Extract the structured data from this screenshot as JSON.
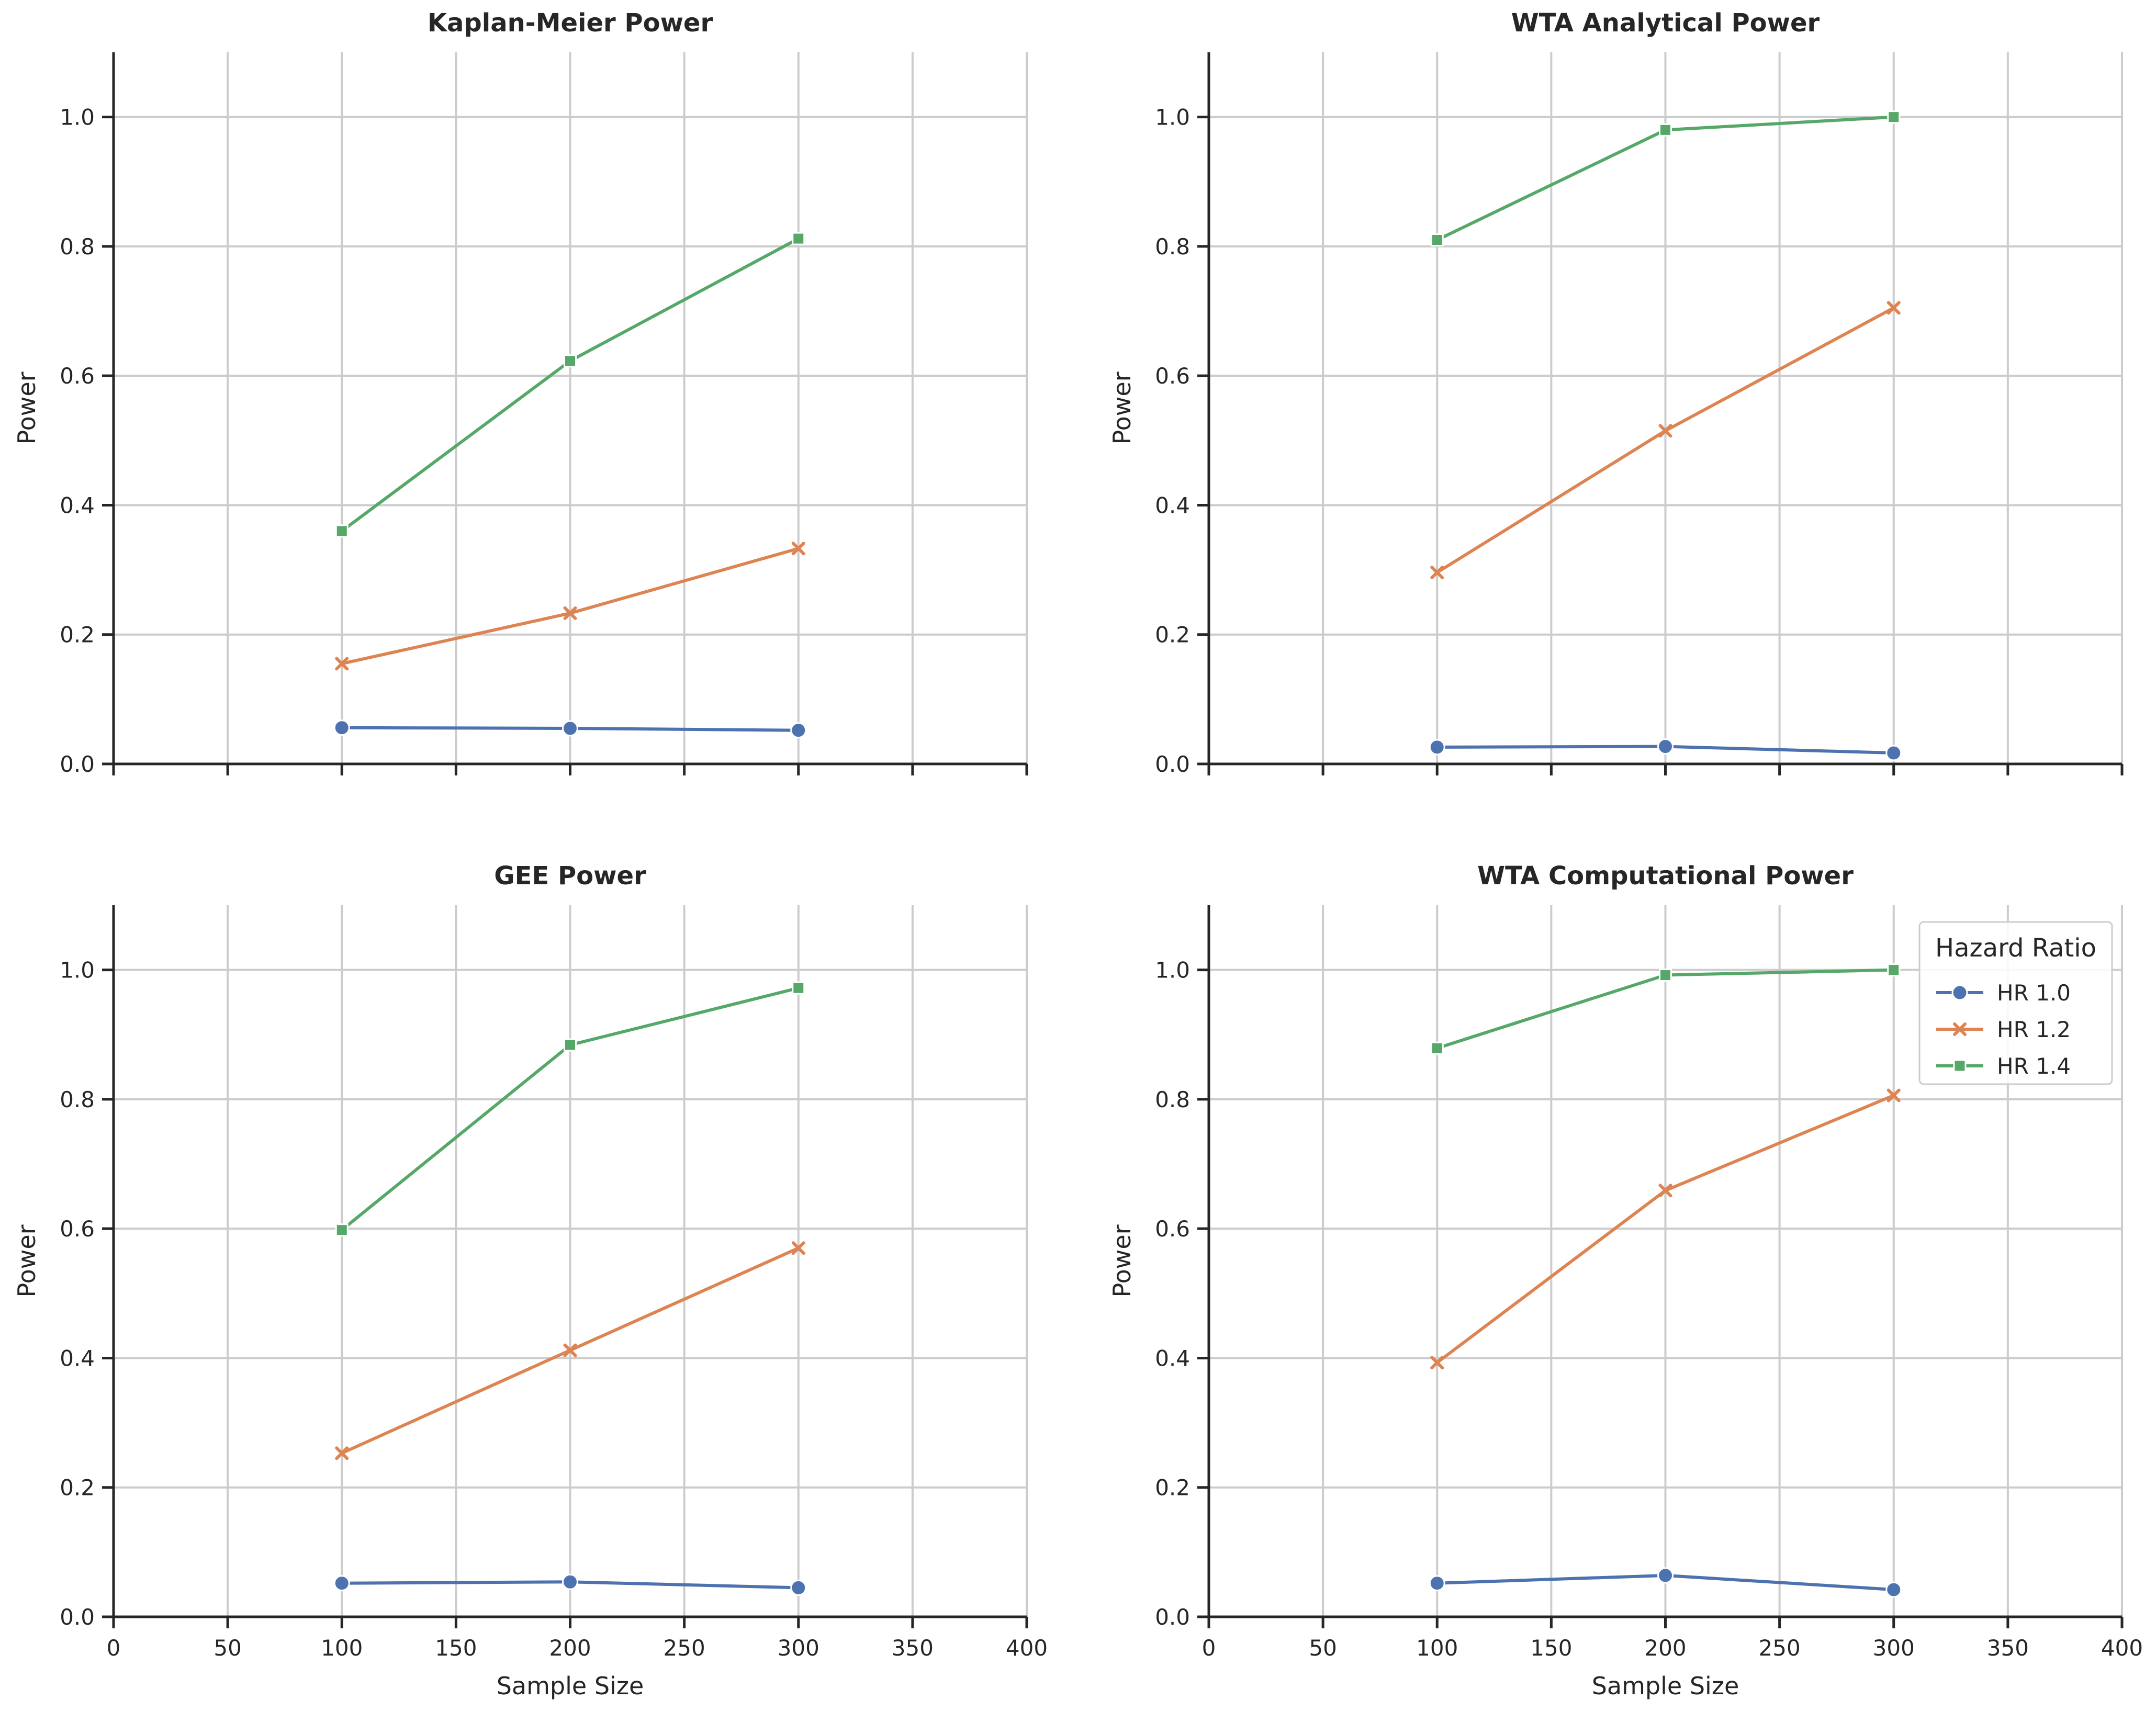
{
  "chart_data": [
    {
      "type": "line",
      "title": "Kaplan-Meier Power",
      "xlabel": "",
      "ylabel": "Power",
      "xlim": [
        0,
        400
      ],
      "ylim": [
        0,
        1.1
      ],
      "x_ticks": [
        0,
        50,
        100,
        150,
        200,
        250,
        300,
        350,
        400
      ],
      "y_ticks": [
        0.0,
        0.2,
        0.4,
        0.6,
        0.8,
        1.0
      ],
      "grid": true,
      "show_x_tick_labels": false,
      "x": [
        100,
        200,
        300
      ],
      "series": [
        {
          "name": "HR 1.0",
          "marker": "circle",
          "values": [
            0.056,
            0.055,
            0.052
          ]
        },
        {
          "name": "HR 1.2",
          "marker": "x",
          "values": [
            0.155,
            0.233,
            0.333
          ]
        },
        {
          "name": "HR 1.4",
          "marker": "square",
          "values": [
            0.36,
            0.623,
            0.812
          ]
        }
      ]
    },
    {
      "type": "line",
      "title": "WTA Analytical Power",
      "xlabel": "",
      "ylabel": "Power",
      "xlim": [
        0,
        400
      ],
      "ylim": [
        0,
        1.1
      ],
      "x_ticks": [
        0,
        50,
        100,
        150,
        200,
        250,
        300,
        350,
        400
      ],
      "y_ticks": [
        0.0,
        0.2,
        0.4,
        0.6,
        0.8,
        1.0
      ],
      "grid": true,
      "show_x_tick_labels": false,
      "x": [
        100,
        200,
        300
      ],
      "series": [
        {
          "name": "HR 1.0",
          "marker": "circle",
          "values": [
            0.026,
            0.027,
            0.017
          ]
        },
        {
          "name": "HR 1.2",
          "marker": "x",
          "values": [
            0.296,
            0.515,
            0.705
          ]
        },
        {
          "name": "HR 1.4",
          "marker": "square",
          "values": [
            0.81,
            0.98,
            1.0
          ]
        }
      ]
    },
    {
      "type": "line",
      "title": "GEE Power",
      "xlabel": "Sample Size",
      "ylabel": "Power",
      "xlim": [
        0,
        400
      ],
      "ylim": [
        0,
        1.1
      ],
      "x_ticks": [
        0,
        50,
        100,
        150,
        200,
        250,
        300,
        350,
        400
      ],
      "y_ticks": [
        0.0,
        0.2,
        0.4,
        0.6,
        0.8,
        1.0
      ],
      "grid": true,
      "show_x_tick_labels": true,
      "x": [
        100,
        200,
        300
      ],
      "series": [
        {
          "name": "HR 1.0",
          "marker": "circle",
          "values": [
            0.052,
            0.054,
            0.045
          ]
        },
        {
          "name": "HR 1.2",
          "marker": "x",
          "values": [
            0.253,
            0.412,
            0.57
          ]
        },
        {
          "name": "HR 1.4",
          "marker": "square",
          "values": [
            0.598,
            0.884,
            0.972
          ]
        }
      ]
    },
    {
      "type": "line",
      "title": "WTA Computational Power",
      "xlabel": "Sample Size",
      "ylabel": "Power",
      "xlim": [
        0,
        400
      ],
      "ylim": [
        0,
        1.1
      ],
      "x_ticks": [
        0,
        50,
        100,
        150,
        200,
        250,
        300,
        350,
        400
      ],
      "y_ticks": [
        0.0,
        0.2,
        0.4,
        0.6,
        0.8,
        1.0
      ],
      "grid": true,
      "show_x_tick_labels": true,
      "legend_position": "top-right",
      "x": [
        100,
        200,
        300
      ],
      "series": [
        {
          "name": "HR 1.0",
          "marker": "circle",
          "values": [
            0.052,
            0.064,
            0.042
          ]
        },
        {
          "name": "HR 1.2",
          "marker": "x",
          "values": [
            0.393,
            0.659,
            0.806
          ]
        },
        {
          "name": "HR 1.4",
          "marker": "square",
          "values": [
            0.879,
            0.992,
            1.0
          ]
        }
      ]
    }
  ],
  "legend": {
    "title": "Hazard Ratio",
    "entries": [
      {
        "label": "HR 1.0",
        "marker": "circle",
        "color": "#4c72b0"
      },
      {
        "label": "HR 1.2",
        "marker": "x",
        "color": "#dd8452"
      },
      {
        "label": "HR 1.4",
        "marker": "square",
        "color": "#55a868"
      }
    ]
  },
  "series_colors": [
    "#4c72b0",
    "#dd8452",
    "#55a868"
  ]
}
